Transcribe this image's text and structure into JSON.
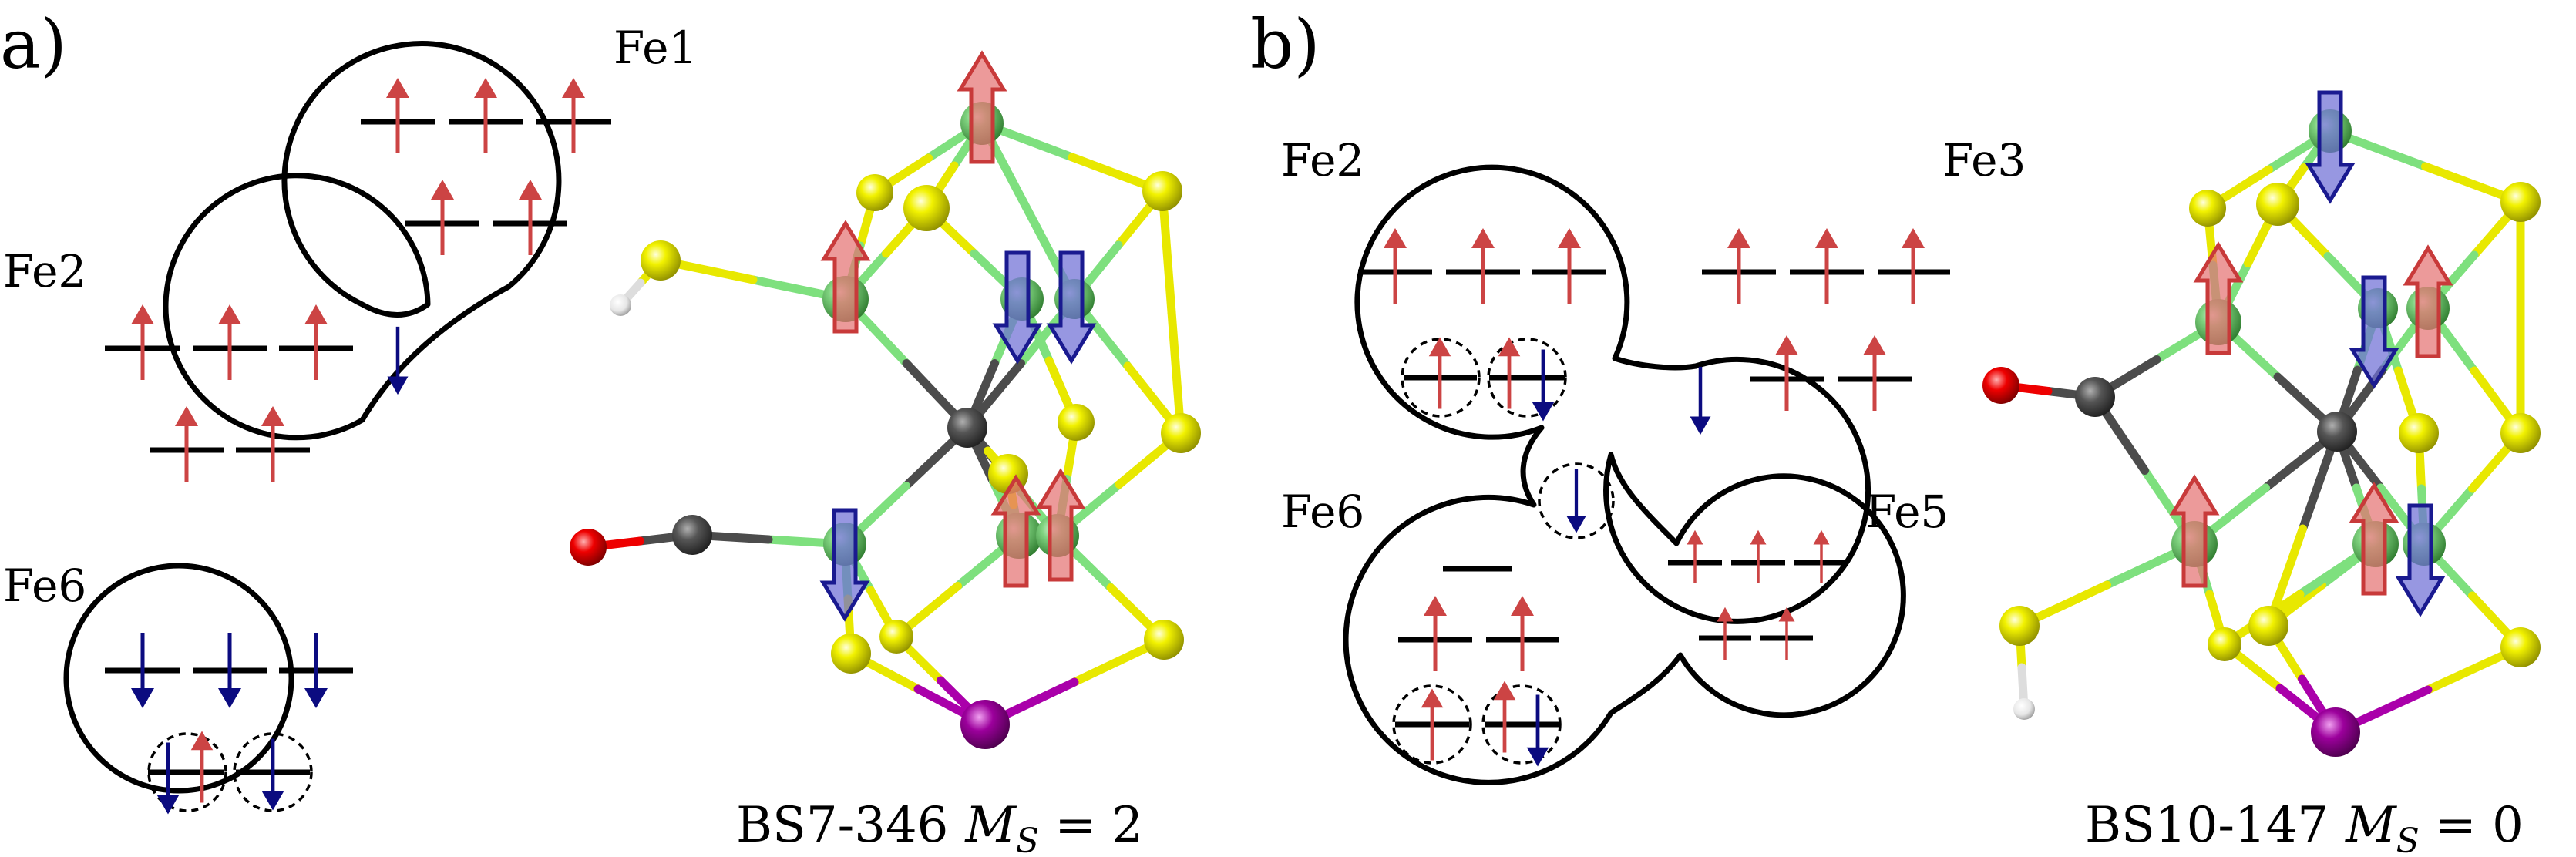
{
  "colors": {
    "spin_up": "#cc4444",
    "spin_down": "#0b0b80",
    "iron": "#6cc86c",
    "sulfur": "#e6e600",
    "carbon": "#555555",
    "oxygen": "#ee0000",
    "hydrogen": "#eeeeee",
    "molybdenum": "#990099",
    "bond_fe": "#7ee07e",
    "bond_s": "#e8e800"
  },
  "panel_a": {
    "label": "a)",
    "fe_labels": {
      "fe1": "Fe1",
      "fe2": "Fe2",
      "fe6": "Fe6"
    },
    "caption_main": "BS7-346",
    "caption_symbol": "M",
    "caption_subscript": "S",
    "caption_value": " = 2"
  },
  "panel_b": {
    "label": "b)",
    "fe_labels": {
      "fe2": "Fe2",
      "fe3": "Fe3",
      "fe5": "Fe5",
      "fe6": "Fe6"
    },
    "caption_main": "BS10-147",
    "caption_symbol": "M",
    "caption_subscript": "S",
    "caption_value": " = 0"
  }
}
